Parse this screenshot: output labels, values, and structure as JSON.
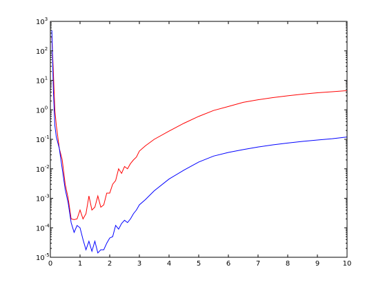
{
  "chart_data": {
    "type": "line",
    "title": "",
    "xlabel": "",
    "ylabel": "",
    "xlim": [
      0,
      10
    ],
    "ylim": [
      1e-05,
      1000
    ],
    "yscale": "log",
    "grid": false,
    "legend": "none",
    "x_ticks": [
      "0",
      "1",
      "2",
      "3",
      "4",
      "5",
      "6",
      "7",
      "8",
      "9",
      "10"
    ],
    "y_ticks": [
      {
        "base": "10",
        "exp": "-5"
      },
      {
        "base": "10",
        "exp": "-4"
      },
      {
        "base": "10",
        "exp": "-3"
      },
      {
        "base": "10",
        "exp": "-2"
      },
      {
        "base": "10",
        "exp": "-1"
      },
      {
        "base": "10",
        "exp": "0"
      },
      {
        "base": "10",
        "exp": "1"
      },
      {
        "base": "10",
        "exp": "2"
      },
      {
        "base": "10",
        "exp": "3"
      }
    ],
    "series": [
      {
        "color": "#ff0000",
        "x": [
          0.05,
          0.1,
          0.15,
          0.2,
          0.3,
          0.4,
          0.5,
          0.6,
          0.7,
          0.8,
          0.9,
          1.0,
          1.1,
          1.2,
          1.3,
          1.4,
          1.5,
          1.6,
          1.7,
          1.8,
          1.9,
          2.0,
          2.1,
          2.2,
          2.3,
          2.4,
          2.5,
          2.6,
          2.7,
          2.8,
          2.9,
          3.0,
          3.2,
          3.5,
          4.0,
          4.5,
          5.0,
          5.5,
          6.0,
          6.5,
          7.0,
          7.5,
          8.0,
          8.5,
          9.0,
          9.5,
          10.0
        ],
        "y": [
          300,
          20,
          1.0,
          0.3,
          0.05,
          0.02,
          0.003,
          0.001,
          0.0002,
          0.00019,
          0.0002,
          0.0004,
          0.0002,
          0.0003,
          0.0012,
          0.0004,
          0.0005,
          0.0012,
          0.0005,
          0.0006,
          0.0015,
          0.0015,
          0.003,
          0.004,
          0.01,
          0.007,
          0.012,
          0.01,
          0.015,
          0.02,
          0.025,
          0.04,
          0.06,
          0.1,
          0.19,
          0.35,
          0.6,
          0.95,
          1.3,
          1.8,
          2.2,
          2.6,
          3.0,
          3.4,
          3.8,
          4.1,
          4.5
        ]
      },
      {
        "color": "#0000ff",
        "x": [
          0.05,
          0.1,
          0.15,
          0.2,
          0.3,
          0.4,
          0.5,
          0.6,
          0.7,
          0.8,
          0.9,
          1.0,
          1.1,
          1.2,
          1.3,
          1.4,
          1.5,
          1.6,
          1.7,
          1.8,
          1.9,
          2.0,
          2.1,
          2.2,
          2.3,
          2.4,
          2.5,
          2.6,
          2.7,
          2.8,
          2.9,
          3.0,
          3.2,
          3.5,
          4.0,
          4.5,
          5.0,
          5.5,
          6.0,
          6.5,
          7.0,
          7.5,
          8.0,
          8.5,
          9.0,
          9.5,
          10.0
        ],
        "y": [
          500,
          5,
          0.3,
          0.12,
          0.05,
          0.01,
          0.002,
          0.0007,
          0.00015,
          7e-05,
          0.00012,
          0.0001,
          4e-05,
          1.8e-05,
          3.5e-05,
          1.6e-05,
          3.5e-05,
          1.4e-05,
          1.8e-05,
          1.8e-05,
          3e-05,
          4.5e-05,
          5e-05,
          0.00012,
          9e-05,
          0.00014,
          0.00018,
          0.00015,
          0.0002,
          0.0003,
          0.0004,
          0.0006,
          0.0009,
          0.0018,
          0.0045,
          0.009,
          0.017,
          0.027,
          0.036,
          0.045,
          0.055,
          0.065,
          0.075,
          0.085,
          0.095,
          0.105,
          0.12
        ]
      }
    ]
  }
}
